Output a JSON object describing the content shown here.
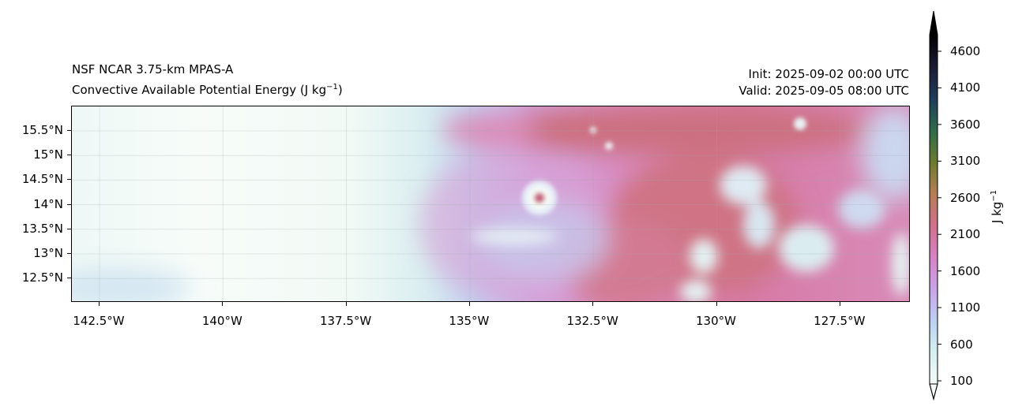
{
  "header": {
    "model": "NSF NCAR 3.75-km MPAS-A",
    "field_prefix": "Convective Available Potential Energy (J kg",
    "field_exp": "−1",
    "field_suffix": ")",
    "init": "Init: 2025-09-02 00:00 UTC",
    "valid": "Valid: 2025-09-05 08:00 UTC"
  },
  "axes": {
    "lon_ticks": [
      {
        "value": -142.5,
        "label": "142.5°W"
      },
      {
        "value": -140,
        "label": "140°W"
      },
      {
        "value": -137.5,
        "label": "137.5°W"
      },
      {
        "value": -135,
        "label": "135°W"
      },
      {
        "value": -132.5,
        "label": "132.5°W"
      },
      {
        "value": -130,
        "label": "130°W"
      },
      {
        "value": -127.5,
        "label": "127.5°W"
      }
    ],
    "lat_ticks": [
      {
        "value": 15.5,
        "label": "15.5°N"
      },
      {
        "value": 15,
        "label": "15°N"
      },
      {
        "value": 14.5,
        "label": "14.5°N"
      },
      {
        "value": 14,
        "label": "14°N"
      },
      {
        "value": 13.5,
        "label": "13.5°N"
      },
      {
        "value": 13,
        "label": "13°N"
      },
      {
        "value": 12.5,
        "label": "12.5°N"
      }
    ]
  },
  "colorbar": {
    "label_prefix": "J kg",
    "label_exp": "−1",
    "ticks": [
      "100",
      "600",
      "1100",
      "1600",
      "2100",
      "2600",
      "3100",
      "3600",
      "4100",
      "4600"
    ],
    "min": 100,
    "max": 4600,
    "colors": [
      "#f4fbf8",
      "#d6eff0",
      "#bcd0f2",
      "#c9a3e8",
      "#d783c4",
      "#d0708a",
      "#b57e55",
      "#6a7a30",
      "#2e6a4c",
      "#1f3c5a",
      "#1a1a33",
      "#000000"
    ]
  }
}
